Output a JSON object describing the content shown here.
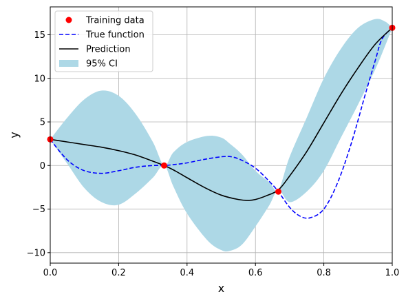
{
  "chart_data": {
    "type": "line",
    "title": "",
    "xlabel": "x",
    "ylabel": "y",
    "xlim": [
      0,
      1
    ],
    "ylim": [
      -11.2,
      18.2
    ],
    "xticks": [
      0,
      0.2,
      0.4,
      0.6,
      0.8,
      1.0
    ],
    "xtick_labels": [
      "0.0",
      "0.2",
      "0.4",
      "0.6",
      "0.8",
      "1.0"
    ],
    "yticks": [
      -10,
      -5,
      0,
      5,
      10,
      15
    ],
    "ytick_labels": [
      "−10",
      "−5",
      "0",
      "5",
      "10",
      "15"
    ],
    "grid": true,
    "legend_position": "top-left",
    "colors": {
      "training": "#ff0000",
      "true": "#0000ff",
      "prediction": "#000000",
      "ci": "#add8e6"
    },
    "legend": [
      {
        "key": "training",
        "label": "Training data",
        "style": "marker"
      },
      {
        "key": "true",
        "label": "True function",
        "style": "dashed"
      },
      {
        "key": "prediction",
        "label": "Prediction",
        "style": "solid"
      },
      {
        "key": "ci",
        "label": "95% CI",
        "style": "patch"
      }
    ],
    "training_data": {
      "x": [
        0.0,
        0.333,
        0.667,
        1.0
      ],
      "y": [
        3.0,
        0.0,
        -3.0,
        15.8
      ]
    },
    "true_function": {
      "x": [
        0.0,
        0.03,
        0.06,
        0.1,
        0.15,
        0.2,
        0.25,
        0.3,
        0.333,
        0.36,
        0.4,
        0.45,
        0.5,
        0.53,
        0.56,
        0.6,
        0.64,
        0.667,
        0.7,
        0.73,
        0.76,
        0.8,
        0.84,
        0.88,
        0.92,
        0.95,
        0.97,
        1.0
      ],
      "y": [
        3.0,
        1.5,
        0.3,
        -0.6,
        -0.9,
        -0.6,
        -0.2,
        0.0,
        0.0,
        0.1,
        0.3,
        0.7,
        1.0,
        1.0,
        0.6,
        -0.3,
        -1.8,
        -3.0,
        -4.8,
        -5.8,
        -6.0,
        -5.0,
        -2.0,
        2.5,
        8.0,
        12.0,
        14.5,
        15.8
      ]
    },
    "prediction": {
      "x": [
        0.0,
        0.05,
        0.1,
        0.15,
        0.2,
        0.25,
        0.3,
        0.333,
        0.36,
        0.4,
        0.45,
        0.5,
        0.55,
        0.58,
        0.6,
        0.63,
        0.667,
        0.7,
        0.75,
        0.8,
        0.85,
        0.9,
        0.95,
        1.0
      ],
      "y": [
        3.0,
        2.7,
        2.4,
        2.1,
        1.7,
        1.2,
        0.5,
        0.0,
        -0.5,
        -1.4,
        -2.5,
        -3.4,
        -3.9,
        -4.0,
        -3.9,
        -3.5,
        -2.8,
        -1.2,
        1.6,
        4.9,
        8.2,
        11.2,
        13.9,
        15.8
      ]
    },
    "confidence_interval": {
      "x": [
        0.0,
        0.05,
        0.1,
        0.15,
        0.2,
        0.25,
        0.3,
        0.333,
        0.36,
        0.4,
        0.46,
        0.5,
        0.525,
        0.56,
        0.6,
        0.64,
        0.667,
        0.7,
        0.75,
        0.8,
        0.85,
        0.9,
        0.95,
        0.98,
        1.0
      ],
      "upper": [
        3.0,
        5.5,
        7.6,
        8.6,
        8.0,
        5.9,
        2.7,
        0.0,
        1.5,
        2.7,
        3.4,
        3.2,
        2.5,
        1.3,
        -0.6,
        -1.9,
        -2.8,
        1.0,
        5.5,
        10.0,
        13.4,
        15.8,
        16.8,
        16.5,
        15.8
      ],
      "lower": [
        3.0,
        0.2,
        -2.6,
        -4.2,
        -4.5,
        -3.2,
        -1.4,
        0.0,
        -2.4,
        -5.5,
        -8.6,
        -9.7,
        -9.8,
        -9.1,
        -7.0,
        -4.6,
        -2.8,
        -4.2,
        -3.0,
        -0.6,
        3.2,
        7.0,
        11.0,
        13.8,
        15.8
      ]
    }
  }
}
